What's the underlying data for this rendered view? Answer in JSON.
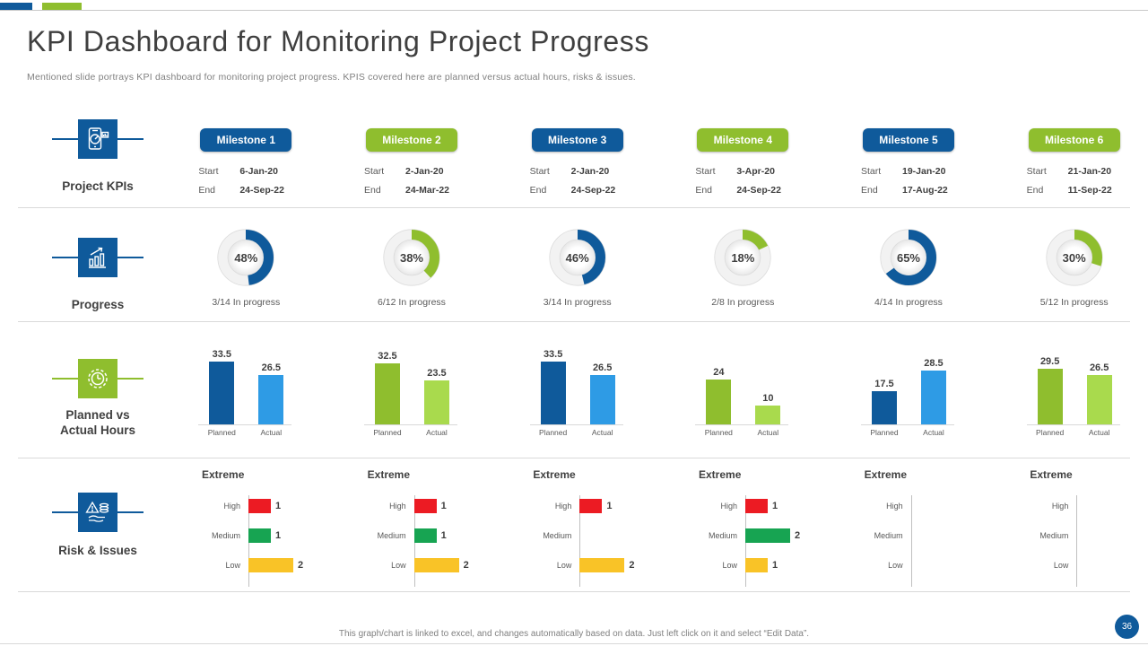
{
  "slide": {
    "title": "KPI Dashboard for Monitoring Project Progress",
    "subtitle": "Mentioned slide portrays KPI dashboard for monitoring project progress. KPIS covered here are planned versus actual hours, risks & issues.",
    "footer_note": "This graph/chart is linked to excel, and changes automatically based on data. Just left click on it and select “Edit Data”.",
    "page_number": "36"
  },
  "row_labels": {
    "kpis": "Project KPIs",
    "progress": "Progress",
    "hours_line1": "Planned vs",
    "hours_line2": "Actual Hours",
    "risk": "Risk & Issues"
  },
  "field_labels": {
    "start": "Start",
    "end": "End",
    "planned": "Planned",
    "actual": "Actual",
    "risk_group": "Extreme",
    "high": "High",
    "medium": "Medium",
    "low": "Low"
  },
  "colors": {
    "blue": "#0F5A9B",
    "blue_light": "#2E9BE5",
    "green": "#8FBE2E",
    "green_light": "#A9DA4D",
    "risk_red": "#EC1B23",
    "risk_green": "#17A452",
    "risk_yellow": "#F9C327",
    "text_dark": "#404040",
    "text_gray": "#595959",
    "divider": "#D9D9D9"
  },
  "milestones": [
    {
      "name": "Milestone 1",
      "theme": "blue",
      "start": "6-Jan-20",
      "end": "24-Sep-22",
      "progress_pct": 48,
      "progress_caption": "3/14 In progress",
      "planned_hours": 33.5,
      "actual_hours": 26.5,
      "risks": {
        "high": 1,
        "medium": 1,
        "low": 2
      }
    },
    {
      "name": "Milestone 2",
      "theme": "green",
      "start": "2-Jan-20",
      "end": "24-Mar-22",
      "progress_pct": 38,
      "progress_caption": "6/12 In progress",
      "planned_hours": 32.5,
      "actual_hours": 23.5,
      "risks": {
        "high": 1,
        "medium": 1,
        "low": 2
      }
    },
    {
      "name": "Milestone 3",
      "theme": "blue",
      "start": "2-Jan-20",
      "end": "24-Sep-22",
      "progress_pct": 46,
      "progress_caption": "3/14 In progress",
      "planned_hours": 33.5,
      "actual_hours": 26.5,
      "risks": {
        "high": 1,
        "medium": 0,
        "low": 2
      }
    },
    {
      "name": "Milestone 4",
      "theme": "green",
      "start": "3-Apr-20",
      "end": "24-Sep-22",
      "progress_pct": 18,
      "progress_caption": "2/8 In progress",
      "planned_hours": 24,
      "actual_hours": 10,
      "risks": {
        "high": 1,
        "medium": 2,
        "low": 1
      }
    },
    {
      "name": "Milestone 5",
      "theme": "blue",
      "start": "19-Jan-20",
      "end": "17-Aug-22",
      "progress_pct": 65,
      "progress_caption": "4/14 In progress",
      "planned_hours": 17.5,
      "actual_hours": 28.5,
      "risks": {
        "high": 0,
        "medium": 0,
        "low": 0
      }
    },
    {
      "name": "Milestone 6",
      "theme": "green",
      "start": "21-Jan-20",
      "end": "11-Sep-22",
      "progress_pct": 30,
      "progress_caption": "5/12 In progress",
      "planned_hours": 29.5,
      "actual_hours": 26.5,
      "risks": {
        "high": 0,
        "medium": 0,
        "low": 0
      }
    }
  ],
  "chart_data": [
    {
      "type": "pie",
      "subtype": "donut-gauge-set",
      "title": "Progress",
      "items": [
        {
          "label": "Milestone 1",
          "percent": 48,
          "caption": "3/14 In progress",
          "color": "#0F5A9B"
        },
        {
          "label": "Milestone 2",
          "percent": 38,
          "caption": "6/12 In progress",
          "color": "#8FBE2E"
        },
        {
          "label": "Milestone 3",
          "percent": 46,
          "caption": "3/14 In progress",
          "color": "#0F5A9B"
        },
        {
          "label": "Milestone 4",
          "percent": 18,
          "caption": "2/8 In progress",
          "color": "#8FBE2E"
        },
        {
          "label": "Milestone 5",
          "percent": 65,
          "caption": "4/14 In progress",
          "color": "#0F5A9B"
        },
        {
          "label": "Milestone 6",
          "percent": 30,
          "caption": "5/12 In progress",
          "color": "#8FBE2E"
        }
      ]
    },
    {
      "type": "bar",
      "title": "Planned vs Actual Hours",
      "categories": [
        "Planned",
        "Actual"
      ],
      "series": [
        {
          "name": "Milestone 1",
          "values": [
            33.5,
            26.5
          ]
        },
        {
          "name": "Milestone 2",
          "values": [
            32.5,
            23.5
          ]
        },
        {
          "name": "Milestone 3",
          "values": [
            33.5,
            26.5
          ]
        },
        {
          "name": "Milestone 4",
          "values": [
            24,
            10
          ]
        },
        {
          "name": "Milestone 5",
          "values": [
            17.5,
            28.5
          ]
        },
        {
          "name": "Milestone 6",
          "values": [
            29.5,
            26.5
          ]
        }
      ],
      "ylim": [
        0,
        35
      ],
      "data_labels": true,
      "grid": false
    },
    {
      "type": "bar",
      "subtype": "horizontal",
      "title": "Risk & Issues",
      "group_title": "Extreme",
      "categories": [
        "High",
        "Medium",
        "Low"
      ],
      "series": [
        {
          "name": "Milestone 1",
          "values": [
            1,
            1,
            2
          ]
        },
        {
          "name": "Milestone 2",
          "values": [
            1,
            1,
            2
          ]
        },
        {
          "name": "Milestone 3",
          "values": [
            1,
            0,
            2
          ]
        },
        {
          "name": "Milestone 4",
          "values": [
            1,
            2,
            1
          ]
        },
        {
          "name": "Milestone 5",
          "values": [
            0,
            0,
            0
          ]
        },
        {
          "name": "Milestone 6",
          "values": [
            0,
            0,
            0
          ]
        }
      ],
      "category_colors": [
        "#EC1B23",
        "#17A452",
        "#F9C327"
      ],
      "xlim": [
        0,
        2
      ],
      "data_labels": true,
      "grid": false
    }
  ]
}
